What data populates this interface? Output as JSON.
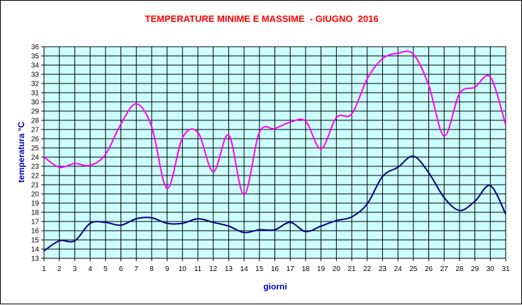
{
  "chart_data": {
    "type": "line",
    "title": "TEMPERATURE MINIME E MASSIME  - GIUGNO  2016",
    "xlabel": "giorni",
    "ylabel": "temperatura °C",
    "x": [
      1,
      2,
      3,
      4,
      5,
      6,
      7,
      8,
      9,
      10,
      11,
      12,
      13,
      14,
      15,
      16,
      17,
      18,
      19,
      20,
      21,
      22,
      23,
      24,
      25,
      26,
      27,
      28,
      29,
      30,
      31
    ],
    "xlim": [
      1,
      31
    ],
    "ylim": [
      13,
      36
    ],
    "grid": true,
    "series": [
      {
        "color": "#ff00ff",
        "values": [
          24.0,
          22.9,
          23.3,
          23.1,
          24.3,
          27.6,
          29.8,
          27.3,
          20.6,
          26.1,
          26.7,
          22.4,
          26.4,
          19.9,
          26.7,
          27.1,
          27.8,
          27.9,
          24.9,
          28.3,
          28.7,
          32.5,
          34.7,
          35.3,
          35.2,
          31.8,
          26.3,
          30.9,
          31.6,
          32.7,
          27.5
        ]
      },
      {
        "color": "#000080",
        "values": [
          13.8,
          14.9,
          14.9,
          16.8,
          16.9,
          16.6,
          17.3,
          17.4,
          16.8,
          16.8,
          17.3,
          16.9,
          16.5,
          15.8,
          16.1,
          16.1,
          16.9,
          15.9,
          16.5,
          17.1,
          17.5,
          18.9,
          21.9,
          22.9,
          24.1,
          22.3,
          19.6,
          18.2,
          19.2,
          20.9,
          17.8
        ]
      }
    ]
  },
  "colors": {
    "plot_background": "#ccffff",
    "grid": "#000000",
    "title": "#ff0000",
    "axis_title": "#0000cc"
  }
}
